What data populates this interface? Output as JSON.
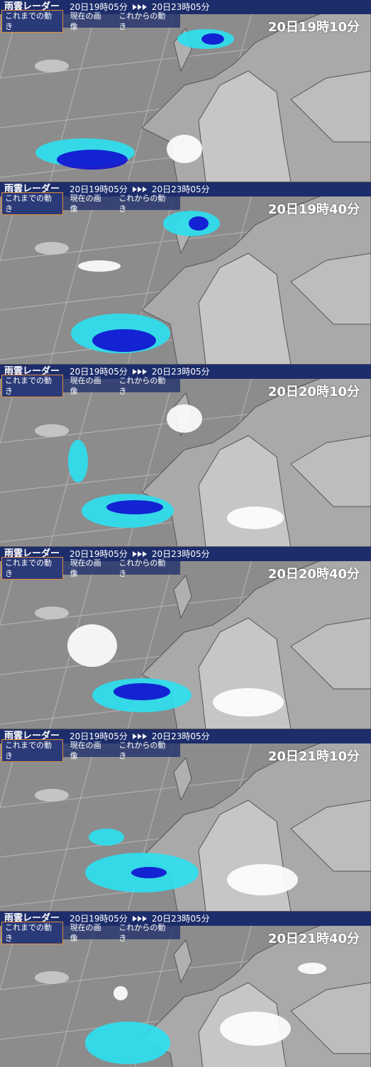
{
  "panels": [
    {
      "header": {
        "title": "雨雲レーダー",
        "from": "20日19時05分",
        "to": "20日23時05分"
      },
      "tabs": [
        "これまでの動き",
        "現在の画像",
        "これからの動き"
      ],
      "timestamp": "20日19時10分"
    },
    {
      "header": {
        "title": "雨雲レーダー",
        "from": "20日19時05分",
        "to": "20日23時05分"
      },
      "tabs": [
        "これまでの動き",
        "現在の画像",
        "これからの動き"
      ],
      "timestamp": "20日19時40分"
    },
    {
      "header": {
        "title": "雨雲レーダー",
        "from": "20日19時05分",
        "to": "20日23時05分"
      },
      "tabs": [
        "これまでの動き",
        "現在の画像",
        "これからの動き"
      ],
      "timestamp": "20日20時10分"
    },
    {
      "header": {
        "title": "雨雲レーダー",
        "from": "20日19時05分",
        "to": "20日23時05分"
      },
      "tabs": [
        "これまでの動き",
        "現在の画像",
        "これからの動き"
      ],
      "timestamp": "20日20時40分"
    },
    {
      "header": {
        "title": "雨雲レーダー",
        "from": "20日19時05分",
        "to": "20日23時05分"
      },
      "tabs": [
        "これまでの動き",
        "現在の画像",
        "これからの動き"
      ],
      "timestamp": "20日21時10分"
    },
    {
      "header": {
        "title": "雨雲レーダー",
        "from": "20日19時05分",
        "to": "20日23時05分"
      },
      "tabs": [
        "これまでの動き",
        "現在の画像",
        "これからの動き"
      ],
      "timestamp": "20日21時40分"
    }
  ]
}
